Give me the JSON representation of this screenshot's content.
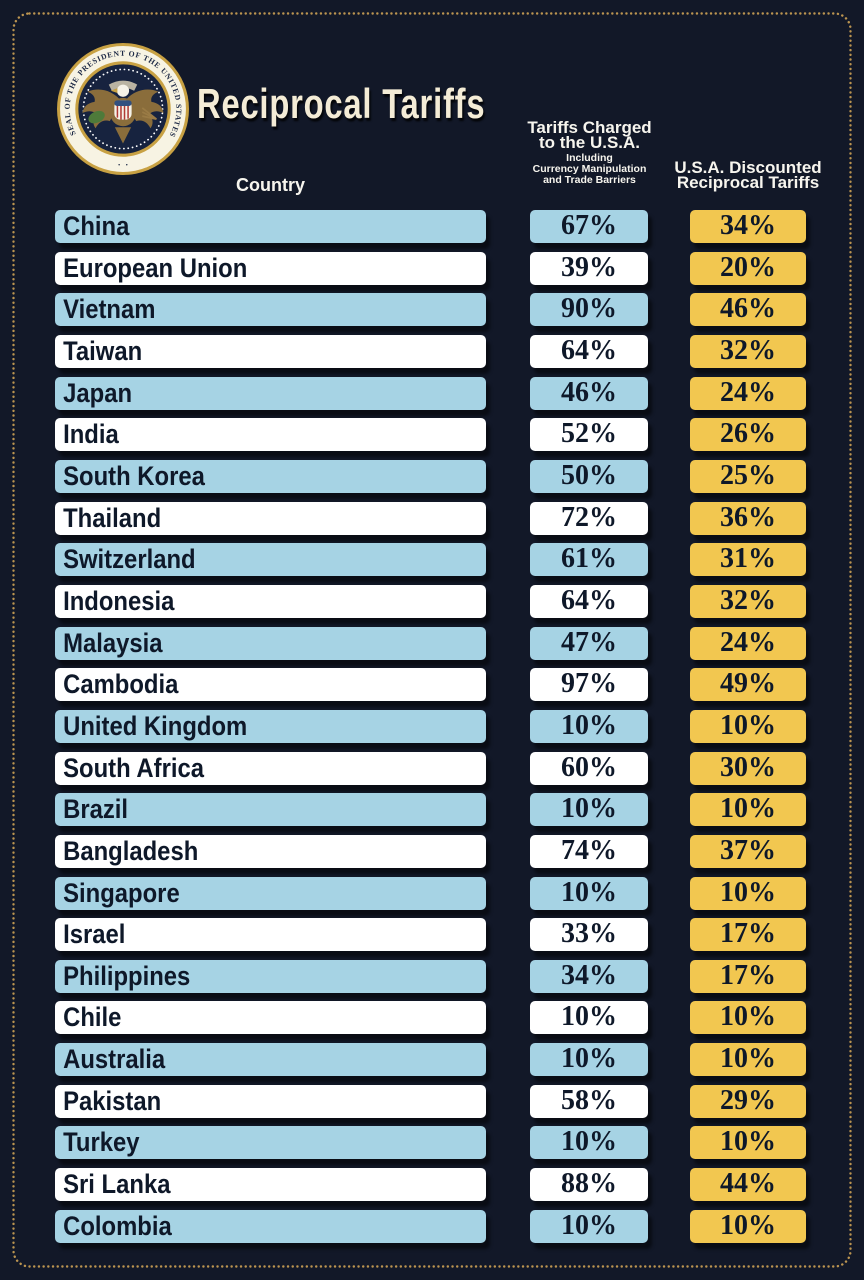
{
  "title": "Reciprocal Tariffs",
  "seal": {
    "circle_text": "SEAL OF THE PRESIDENT OF THE UNITED STATES",
    "bottom_dots": "·  ·"
  },
  "columns": {
    "country": "Country",
    "charged": {
      "line1": "Tariffs Charged",
      "line2": "to the U.S.A.",
      "sub1": "Including",
      "sub2": "Currency Manipulation",
      "sub3": "and Trade Barriers"
    },
    "discounted": {
      "line1": "U.S.A. Discounted",
      "line2": "Reciprocal Tariffs"
    }
  },
  "colors": {
    "background": "#121828",
    "row_blue": "#a6d3e4",
    "row_white": "#ffffff",
    "tariff_gold": "#f2c750",
    "border_gold": "#bb9450",
    "title_cream": "#f4ecd6",
    "text_dark": "#0e1829"
  },
  "chart_data": {
    "type": "table",
    "title": "Reciprocal Tariffs",
    "columns": [
      "Country",
      "Tariffs Charged to the U.S.A. Including Currency Manipulation and Trade Barriers",
      "U.S.A. Discounted Reciprocal Tariffs"
    ],
    "rows": [
      [
        "China",
        "67%",
        "34%"
      ],
      [
        "European Union",
        "39%",
        "20%"
      ],
      [
        "Vietnam",
        "90%",
        "46%"
      ],
      [
        "Taiwan",
        "64%",
        "32%"
      ],
      [
        "Japan",
        "46%",
        "24%"
      ],
      [
        "India",
        "52%",
        "26%"
      ],
      [
        "South Korea",
        "50%",
        "25%"
      ],
      [
        "Thailand",
        "72%",
        "36%"
      ],
      [
        "Switzerland",
        "61%",
        "31%"
      ],
      [
        "Indonesia",
        "64%",
        "32%"
      ],
      [
        "Malaysia",
        "47%",
        "24%"
      ],
      [
        "Cambodia",
        "97%",
        "49%"
      ],
      [
        "United Kingdom",
        "10%",
        "10%"
      ],
      [
        "South Africa",
        "60%",
        "30%"
      ],
      [
        "Brazil",
        "10%",
        "10%"
      ],
      [
        "Bangladesh",
        "74%",
        "37%"
      ],
      [
        "Singapore",
        "10%",
        "10%"
      ],
      [
        "Israel",
        "33%",
        "17%"
      ],
      [
        "Philippines",
        "34%",
        "17%"
      ],
      [
        "Chile",
        "10%",
        "10%"
      ],
      [
        "Australia",
        "10%",
        "10%"
      ],
      [
        "Pakistan",
        "58%",
        "29%"
      ],
      [
        "Turkey",
        "10%",
        "10%"
      ],
      [
        "Sri Lanka",
        "88%",
        "44%"
      ],
      [
        "Colombia",
        "10%",
        "10%"
      ]
    ]
  }
}
